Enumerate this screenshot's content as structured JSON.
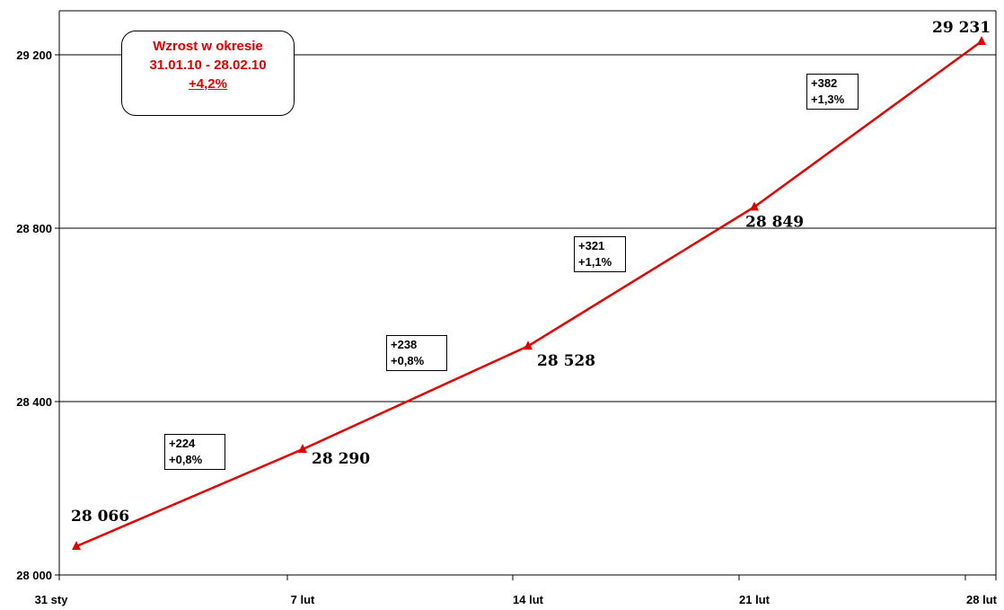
{
  "chart_data": {
    "type": "line",
    "title": "",
    "xlabel": "",
    "ylabel": "",
    "categories": [
      "31 sty",
      "7 lut",
      "14 lut",
      "21 lut",
      "28 lut"
    ],
    "x_tick_labels": [
      "31 sty",
      "7 lut",
      "14 lut",
      "21 lut",
      "28 lut"
    ],
    "series": [
      {
        "values": [
          28066,
          28290,
          28528,
          28849,
          29231
        ],
        "value_labels": [
          "28 066",
          "28 290",
          "28 528",
          "28 849",
          "29 231"
        ],
        "color": "#e00000",
        "marker": "triangle"
      }
    ],
    "ylim": [
      28000,
      29300
    ],
    "y_ticks": [
      28000,
      28400,
      28800,
      29200
    ],
    "y_tick_labels": [
      "28 000",
      "28 400",
      "28 800",
      "29 200"
    ],
    "grid": true,
    "change_labels": [
      {
        "abs": "+224",
        "pct": "+0,8%"
      },
      {
        "abs": "+238",
        "pct": "+0,8%"
      },
      {
        "abs": "+321",
        "pct": "+1,1%"
      },
      {
        "abs": "+382",
        "pct": "+1,3%"
      }
    ],
    "summary": {
      "line1": "Wzrost w okresie",
      "line2": "31.01.10 - 28.02.10",
      "line3": "+4,2%"
    }
  }
}
